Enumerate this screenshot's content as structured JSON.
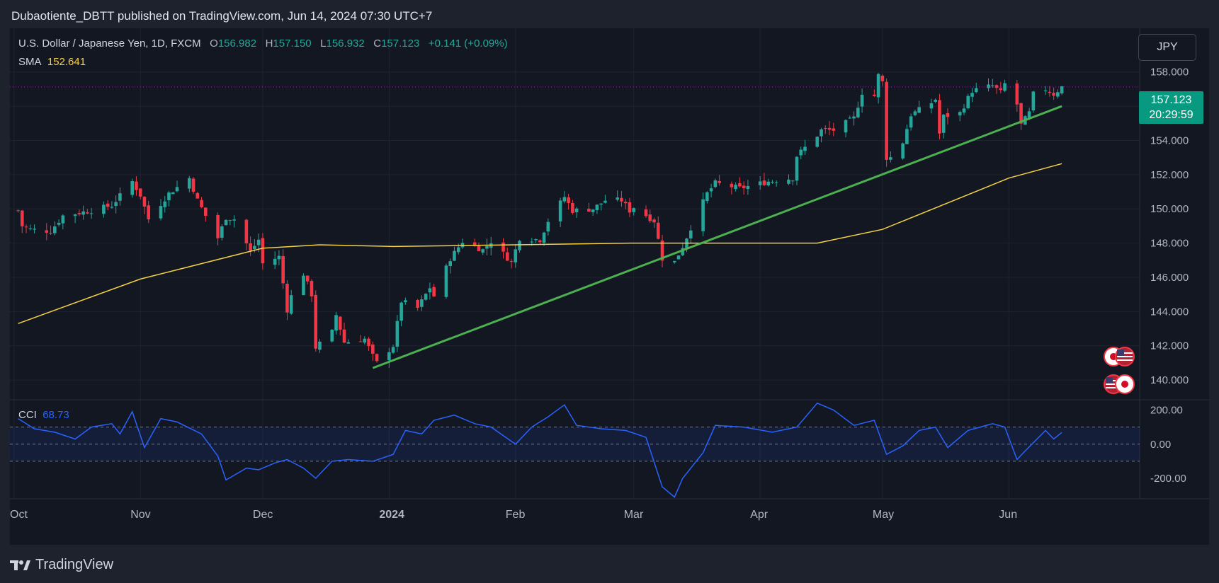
{
  "header": {
    "attribution": "Dubaotiente_DBTT published on TradingView.com, Jun 14, 2024 07:30 UTC+7"
  },
  "legend": {
    "title": "U.S. Dollar / Japanese Yen, 1D, FXCM",
    "o_label": "O",
    "o_value": "156.982",
    "h_label": "H",
    "h_value": "157.150",
    "l_label": "L",
    "l_value": "156.932",
    "c_label": "C",
    "c_value": "157.123",
    "change": "+0.141 (+0.09%)",
    "sma_label": "SMA",
    "sma_value": "152.641",
    "cci_label": "CCI",
    "cci_value": "68.73"
  },
  "currency_button": "JPY",
  "last_price": {
    "price": "157.123",
    "countdown": "20:29:59"
  },
  "footer": {
    "brand": "TradingView"
  },
  "colors": {
    "background": "#131722",
    "up": "#26a69a",
    "down": "#f23645",
    "sma": "#f5d142",
    "trendline": "#4caf50",
    "cci": "#2962ff",
    "grid": "#1f2330"
  },
  "icons": [
    "japan-flag-icon",
    "us-flag-icon"
  ],
  "chart_data": [
    {
      "type": "candlestick",
      "symbol": "U.S. Dollar / Japanese Yen",
      "timeframe": "1D",
      "x_ticks": [
        "Oct",
        "Nov",
        "Dec",
        "2024",
        "Feb",
        "Mar",
        "Apr",
        "May",
        "Jun"
      ],
      "y_ticks": [
        "140.000",
        "142.000",
        "144.000",
        "146.000",
        "148.000",
        "150.000",
        "152.000",
        "154.000",
        "156.000",
        "158.000"
      ],
      "ylim": [
        139.3,
        159.6
      ],
      "last_close": 157.123,
      "close_path": [
        [
          "2023-10-02",
          149.9
        ],
        [
          "2023-10-03",
          149.0
        ],
        [
          "2023-10-05",
          148.8
        ],
        [
          "2023-10-10",
          148.7
        ],
        [
          "2023-10-13",
          149.6
        ],
        [
          "2023-10-20",
          149.9
        ],
        [
          "2023-10-25",
          150.2
        ],
        [
          "2023-10-30",
          151.6
        ],
        [
          "2023-11-01",
          150.8
        ],
        [
          "2023-11-03",
          149.4
        ],
        [
          "2023-11-08",
          150.9
        ],
        [
          "2023-11-13",
          151.8
        ],
        [
          "2023-11-15",
          150.5
        ],
        [
          "2023-11-17",
          149.6
        ],
        [
          "2023-11-20",
          148.3
        ],
        [
          "2023-11-22",
          149.5
        ],
        [
          "2023-11-24",
          149.4
        ],
        [
          "2023-11-28",
          147.5
        ],
        [
          "2023-11-30",
          148.2
        ],
        [
          "2023-12-01",
          146.8
        ],
        [
          "2023-12-05",
          147.2
        ],
        [
          "2023-12-07",
          144.1
        ],
        [
          "2023-12-08",
          144.9
        ],
        [
          "2023-12-11",
          146.2
        ],
        [
          "2023-12-13",
          145.0
        ],
        [
          "2023-12-14",
          141.9
        ],
        [
          "2023-12-18",
          142.8
        ],
        [
          "2023-12-19",
          143.8
        ],
        [
          "2023-12-21",
          142.2
        ],
        [
          "2023-12-26",
          142.4
        ],
        [
          "2023-12-28",
          141.4
        ],
        [
          "2023-12-29",
          141.0
        ],
        [
          "2024-01-02",
          142.0
        ],
        [
          "2024-01-04",
          144.6
        ],
        [
          "2024-01-08",
          144.2
        ],
        [
          "2024-01-11",
          145.4
        ],
        [
          "2024-01-12",
          144.9
        ],
        [
          "2024-01-16",
          147.1
        ],
        [
          "2024-01-19",
          148.1
        ],
        [
          "2024-01-24",
          147.6
        ],
        [
          "2024-01-26",
          148.1
        ],
        [
          "2024-01-31",
          146.9
        ],
        [
          "2024-02-02",
          148.3
        ],
        [
          "2024-02-07",
          148.2
        ],
        [
          "2024-02-09",
          149.3
        ],
        [
          "2024-02-13",
          150.7
        ],
        [
          "2024-02-15",
          149.9
        ],
        [
          "2024-02-20",
          150.0
        ],
        [
          "2024-02-23",
          150.5
        ],
        [
          "2024-02-27",
          150.5
        ],
        [
          "2024-02-29",
          149.9
        ],
        [
          "2024-03-01",
          150.1
        ],
        [
          "2024-03-06",
          149.3
        ],
        [
          "2024-03-08",
          147.1
        ],
        [
          "2024-03-11",
          146.9
        ],
        [
          "2024-03-13",
          147.8
        ],
        [
          "2024-03-15",
          148.9
        ],
        [
          "2024-03-19",
          150.9
        ],
        [
          "2024-03-21",
          151.5
        ],
        [
          "2024-03-27",
          151.2
        ],
        [
          "2024-04-03",
          151.6
        ],
        [
          "2024-04-09",
          151.8
        ],
        [
          "2024-04-10",
          153.1
        ],
        [
          "2024-04-15",
          154.3
        ],
        [
          "2024-04-16",
          154.6
        ],
        [
          "2024-04-19",
          154.6
        ],
        [
          "2024-04-24",
          155.3
        ],
        [
          "2024-04-26",
          156.8
        ],
        [
          "2024-04-29",
          156.6
        ],
        [
          "2024-04-30",
          157.8
        ],
        [
          "2024-05-01",
          157.4
        ],
        [
          "2024-05-02",
          153.0
        ],
        [
          "2024-05-03",
          153.0
        ],
        [
          "2024-05-06",
          153.9
        ],
        [
          "2024-05-08",
          155.5
        ],
        [
          "2024-05-13",
          156.2
        ],
        [
          "2024-05-14",
          156.4
        ],
        [
          "2024-05-15",
          154.4
        ],
        [
          "2024-05-16",
          155.4
        ],
        [
          "2024-05-20",
          155.6
        ],
        [
          "2024-05-23",
          156.9
        ],
        [
          "2024-05-28",
          157.2
        ],
        [
          "2024-05-30",
          156.8
        ],
        [
          "2024-05-31",
          157.3
        ],
        [
          "2024-06-03",
          156.1
        ],
        [
          "2024-06-04",
          154.9
        ],
        [
          "2024-06-06",
          155.6
        ],
        [
          "2024-06-07",
          156.7
        ],
        [
          "2024-06-10",
          157.0
        ],
        [
          "2024-06-12",
          156.7
        ],
        [
          "2024-06-14",
          157.123
        ]
      ],
      "sma_path": [
        [
          "2023-10-02",
          143.3
        ],
        [
          "2023-11-01",
          145.9
        ],
        [
          "2023-12-01",
          147.7
        ],
        [
          "2023-12-15",
          147.9
        ],
        [
          "2024-01-02",
          147.8
        ],
        [
          "2024-02-01",
          147.9
        ],
        [
          "2024-03-01",
          148.0
        ],
        [
          "2024-04-15",
          148.0
        ],
        [
          "2024-05-01",
          148.8
        ],
        [
          "2024-06-01",
          151.8
        ],
        [
          "2024-06-14",
          152.641
        ]
      ],
      "trendline": [
        [
          "2023-12-28",
          140.7
        ],
        [
          "2024-06-14",
          156.0
        ]
      ],
      "sma_value": 152.641
    },
    {
      "type": "line",
      "series": [
        {
          "name": "CCI",
          "last": 68.73
        }
      ],
      "y_ticks": [
        "200.00",
        "0.00",
        "-200.00"
      ],
      "band": [
        -100,
        100
      ],
      "ylim": [
        -320,
        260
      ],
      "points": [
        [
          "2023-10-02",
          150
        ],
        [
          "2023-10-06",
          90
        ],
        [
          "2023-10-11",
          70
        ],
        [
          "2023-10-16",
          30
        ],
        [
          "2023-10-20",
          100
        ],
        [
          "2023-10-25",
          120
        ],
        [
          "2023-10-27",
          60
        ],
        [
          "2023-10-30",
          190
        ],
        [
          "2023-11-02",
          -20
        ],
        [
          "2023-11-06",
          150
        ],
        [
          "2023-11-10",
          130
        ],
        [
          "2023-11-16",
          60
        ],
        [
          "2023-11-20",
          -70
        ],
        [
          "2023-11-22",
          -210
        ],
        [
          "2023-11-27",
          -140
        ],
        [
          "2023-11-30",
          -150
        ],
        [
          "2023-12-04",
          -110
        ],
        [
          "2023-12-07",
          -90
        ],
        [
          "2023-12-11",
          -140
        ],
        [
          "2023-12-14",
          -200
        ],
        [
          "2023-12-18",
          -100
        ],
        [
          "2023-12-22",
          -90
        ],
        [
          "2023-12-28",
          -100
        ],
        [
          "2024-01-02",
          -60
        ],
        [
          "2024-01-05",
          80
        ],
        [
          "2024-01-09",
          60
        ],
        [
          "2024-01-12",
          140
        ],
        [
          "2024-01-17",
          170
        ],
        [
          "2024-01-22",
          120
        ],
        [
          "2024-01-26",
          100
        ],
        [
          "2024-02-01",
          0
        ],
        [
          "2024-02-05",
          100
        ],
        [
          "2024-02-09",
          160
        ],
        [
          "2024-02-13",
          230
        ],
        [
          "2024-02-16",
          110
        ],
        [
          "2024-02-22",
          90
        ],
        [
          "2024-02-28",
          80
        ],
        [
          "2024-03-04",
          40
        ],
        [
          "2024-03-08",
          -250
        ],
        [
          "2024-03-11",
          -310
        ],
        [
          "2024-03-13",
          -200
        ],
        [
          "2024-03-18",
          -50
        ],
        [
          "2024-03-21",
          110
        ],
        [
          "2024-03-28",
          100
        ],
        [
          "2024-04-04",
          70
        ],
        [
          "2024-04-10",
          100
        ],
        [
          "2024-04-15",
          240
        ],
        [
          "2024-04-19",
          200
        ],
        [
          "2024-04-24",
          110
        ],
        [
          "2024-04-29",
          140
        ],
        [
          "2024-05-02",
          -60
        ],
        [
          "2024-05-06",
          -10
        ],
        [
          "2024-05-10",
          80
        ],
        [
          "2024-05-14",
          100
        ],
        [
          "2024-05-17",
          -20
        ],
        [
          "2024-05-22",
          80
        ],
        [
          "2024-05-28",
          120
        ],
        [
          "2024-05-31",
          100
        ],
        [
          "2024-06-03",
          -90
        ],
        [
          "2024-06-05",
          -40
        ],
        [
          "2024-06-10",
          80
        ],
        [
          "2024-06-12",
          30
        ],
        [
          "2024-06-14",
          68.73
        ]
      ]
    }
  ]
}
